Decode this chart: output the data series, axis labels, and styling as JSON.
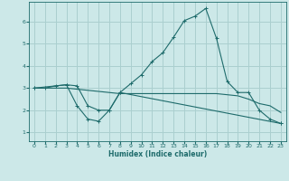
{
  "xlabel": "Humidex (Indice chaleur)",
  "ylabel": "",
  "bg_color": "#cce8e8",
  "line_color": "#1e6b6b",
  "grid_color": "#aacfcf",
  "x_ticks": [
    0,
    1,
    2,
    3,
    4,
    5,
    6,
    7,
    8,
    9,
    10,
    11,
    12,
    13,
    14,
    15,
    16,
    17,
    18,
    19,
    20,
    21,
    22,
    23
  ],
  "y_ticks": [
    1,
    2,
    3,
    4,
    5,
    6
  ],
  "ylim": [
    0.6,
    6.9
  ],
  "xlim": [
    -0.5,
    23.5
  ],
  "series1_x": [
    0,
    1,
    2,
    3,
    4,
    5,
    6,
    7,
    8,
    9,
    10,
    11,
    12,
    13,
    14,
    15,
    16,
    17,
    18,
    19,
    20,
    21,
    22,
    23
  ],
  "series1_y": [
    3.0,
    3.0,
    3.1,
    3.15,
    3.1,
    2.2,
    2.0,
    2.0,
    2.8,
    3.2,
    3.6,
    4.2,
    4.6,
    5.3,
    6.05,
    6.25,
    6.6,
    5.25,
    3.3,
    2.8,
    2.8,
    2.0,
    1.6,
    1.4
  ],
  "series2_x": [
    0,
    1,
    2,
    3,
    4,
    5,
    6,
    7,
    8,
    9,
    10,
    11,
    12,
    13,
    14,
    15,
    16,
    17,
    18,
    19,
    20,
    21,
    22,
    23
  ],
  "series2_y": [
    3.0,
    3.0,
    3.0,
    3.0,
    2.95,
    2.9,
    2.85,
    2.8,
    2.75,
    2.75,
    2.75,
    2.75,
    2.75,
    2.75,
    2.75,
    2.75,
    2.75,
    2.75,
    2.7,
    2.65,
    2.5,
    2.3,
    2.2,
    1.9
  ],
  "series3_x": [
    0,
    3,
    4,
    5,
    6,
    7,
    8,
    23
  ],
  "series3_y": [
    3.0,
    3.15,
    2.2,
    1.6,
    1.5,
    2.0,
    2.8,
    1.4
  ]
}
